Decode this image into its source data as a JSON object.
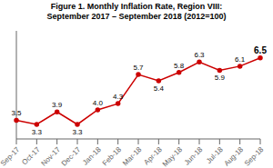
{
  "chart_data": {
    "type": "line",
    "title": "Figure 1. Monthly Inflation Rate, Region VIII:",
    "subtitle": "September 2017 – September 2018 (2012=100)",
    "categories": [
      "Sep-17",
      "Oct-17",
      "Nov-17",
      "Dec-17",
      "Jan-18",
      "Feb-18",
      "Mar-18",
      "Apr-18",
      "May-18",
      "Jun-18",
      "Jul-18",
      "Aug-18",
      "Sep-18"
    ],
    "values": [
      3.5,
      3.3,
      3.9,
      3.3,
      4.0,
      4.3,
      5.7,
      5.4,
      5.8,
      6.3,
      5.9,
      6.1,
      6.5
    ],
    "value_labels": [
      "3.5",
      "3.3",
      "3.9",
      "3.3",
      "4.0",
      "4.3",
      "5.7",
      "5.4",
      "5.8",
      "6.3",
      "5.9",
      "6.1",
      "6.5"
    ],
    "color": "#cc0000",
    "marker": "circle",
    "ylim": [
      2.6,
      7.8
    ],
    "grid": false,
    "data_labels": true,
    "tick_labels": "x"
  }
}
